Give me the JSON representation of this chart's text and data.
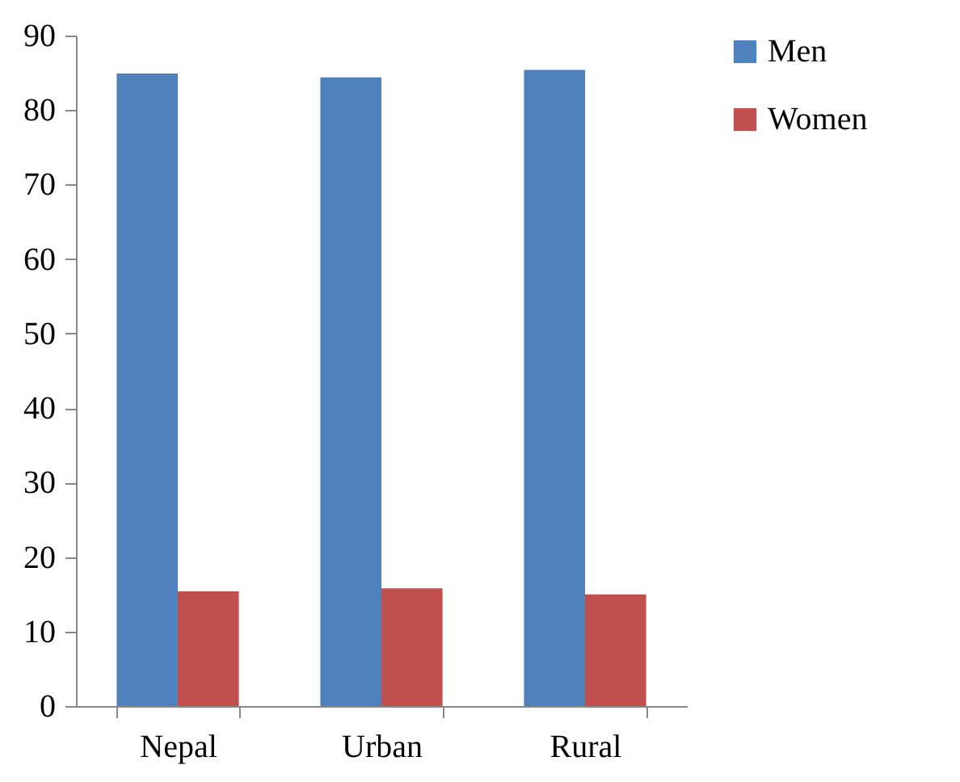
{
  "chart_data": {
    "type": "bar",
    "categories": [
      "Nepal",
      "Urban",
      "Rural"
    ],
    "series": [
      {
        "name": "Men",
        "color": "#4f81bd",
        "values": [
          84.9,
          84.4,
          85.4
        ]
      },
      {
        "name": "Women",
        "color": "#c0504d",
        "values": [
          15.4,
          15.8,
          15.0
        ]
      }
    ],
    "ylim": [
      0,
      90
    ],
    "yticks": [
      0,
      10,
      20,
      30,
      40,
      50,
      60,
      70,
      80,
      90
    ],
    "grid": false,
    "legend": "right"
  }
}
